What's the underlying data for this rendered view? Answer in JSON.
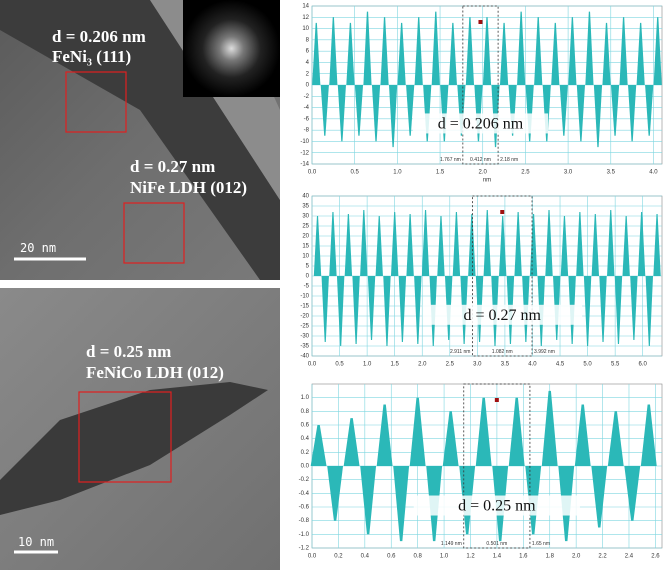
{
  "images": [
    {
      "labels": [
        "d = 0.206 nm",
        "FeNi₃ (111)",
        "d = 0.27 nm",
        "NiFe LDH (012)"
      ],
      "scale_bar": "20 nm"
    },
    {
      "labels": [
        "d = 0.25 nm",
        "FeNiCo LDH (012)"
      ],
      "scale_bar": "10 nm"
    }
  ],
  "chart_data": [
    {
      "type": "line",
      "color": "#2bb8b8",
      "grid": true,
      "xlabel": "nm",
      "annotation": "d = 0.206 nm",
      "measure": [
        {
          "value": 1.767,
          "label": "1.767 nm"
        },
        {
          "value": 0.412,
          "label": "0.412 nm"
        },
        {
          "value": 2.18,
          "label": "2.18 nm"
        }
      ],
      "xlim": [
        0,
        4.1
      ],
      "ylim": [
        -14,
        14
      ],
      "xticks": [
        {
          "value": 0,
          "label": "0.0"
        },
        0.5,
        {
          "value": 1,
          "label": "1.0"
        },
        1.5,
        {
          "value": 2,
          "label": "2.0"
        },
        2.5,
        {
          "value": 3,
          "label": "3.0"
        },
        3.5,
        {
          "value": 4,
          "label": "4.0"
        }
      ],
      "yticks": [
        -14,
        -12,
        -10,
        -8,
        -6,
        -4,
        -2,
        0,
        2,
        4,
        6,
        8,
        10,
        12,
        14
      ],
      "x": [
        0.05,
        0.15,
        0.25,
        0.35,
        0.45,
        0.55,
        0.65,
        0.75,
        0.85,
        0.95,
        1.05,
        1.15,
        1.25,
        1.35,
        1.45,
        1.55,
        1.65,
        1.75,
        1.85,
        1.95,
        2.05,
        2.15,
        2.25,
        2.35,
        2.45,
        2.55,
        2.65,
        2.75,
        2.85,
        2.95,
        3.05,
        3.15,
        3.25,
        3.35,
        3.45,
        3.55,
        3.65,
        3.75,
        3.85,
        3.95,
        4.05
      ],
      "values": [
        11,
        -9,
        12,
        -10,
        11,
        -9,
        13,
        -10,
        12,
        -11,
        11,
        -9,
        12,
        -10,
        13,
        -10,
        11,
        -9,
        12,
        -10,
        12,
        -11,
        11,
        -9,
        13,
        -10,
        12,
        -10,
        11,
        -9,
        12,
        -10,
        13,
        -11,
        11,
        -9,
        12,
        -10,
        11,
        -9,
        12
      ]
    },
    {
      "type": "line",
      "color": "#2bb8b8",
      "grid": true,
      "annotation": "d = 0.27 nm",
      "measure": [
        {
          "value": 2.911,
          "label": "2.911 nm"
        },
        {
          "value": 1.082,
          "label": "1.082 nm"
        },
        {
          "value": 3.992,
          "label": "3.992 nm"
        }
      ],
      "xlim": [
        0,
        6.35
      ],
      "ylim": [
        -40,
        40
      ],
      "xticks": [
        {
          "value": 0,
          "label": "0.0"
        },
        0.5,
        {
          "value": 1,
          "label": "1.0"
        },
        1.5,
        {
          "value": 2,
          "label": "2.0"
        },
        2.5,
        {
          "value": 3,
          "label": "3.0"
        },
        3.5,
        {
          "value": 4,
          "label": "4.0"
        },
        4.5,
        {
          "value": 5,
          "label": "5.0"
        },
        5.5,
        {
          "value": 6,
          "label": "6.0"
        }
      ],
      "yticks": [
        -40,
        -35,
        -30,
        -25,
        -20,
        -15,
        -10,
        -5,
        0,
        5,
        10,
        15,
        20,
        25,
        30,
        35,
        40
      ],
      "x": [
        0.1,
        0.24,
        0.38,
        0.52,
        0.66,
        0.8,
        0.94,
        1.08,
        1.22,
        1.36,
        1.5,
        1.64,
        1.78,
        1.92,
        2.06,
        2.2,
        2.34,
        2.48,
        2.62,
        2.76,
        2.9,
        3.04,
        3.18,
        3.32,
        3.46,
        3.6,
        3.74,
        3.88,
        4.02,
        4.16,
        4.3,
        4.44,
        4.58,
        4.72,
        4.86,
        5.0,
        5.14,
        5.28,
        5.42,
        5.56,
        5.7,
        5.84,
        5.98,
        6.12,
        6.26
      ],
      "values": [
        30,
        -33,
        32,
        -35,
        31,
        -34,
        33,
        -32,
        30,
        -35,
        32,
        -33,
        31,
        -34,
        33,
        -35,
        30,
        -32,
        32,
        -34,
        31,
        -33,
        33,
        -35,
        30,
        -34,
        32,
        -33,
        31,
        -35,
        33,
        -32,
        30,
        -34,
        32,
        -35,
        31,
        -33,
        33,
        -34,
        30,
        -32,
        32,
        -35,
        31
      ]
    },
    {
      "type": "line",
      "color": "#2bb8b8",
      "grid": true,
      "annotation": "d = 0.25 nm",
      "measure": [
        {
          "value": 1.149,
          "label": "1.149 nm"
        },
        {
          "value": 0.501,
          "label": "0.501 nm"
        },
        {
          "value": 1.65,
          "label": "1.65 nm"
        }
      ],
      "xlim": [
        0,
        2.65
      ],
      "ylim": [
        -1.2,
        1.2
      ],
      "xticks": [
        {
          "value": 0,
          "label": "0.0"
        },
        0.2,
        0.4,
        0.6,
        0.8,
        {
          "value": 1,
          "label": "1.0"
        },
        1.2,
        1.4,
        1.6,
        1.8,
        {
          "value": 2,
          "label": "2.0"
        },
        2.2,
        2.4,
        2.6
      ],
      "yticks": [
        -1.2,
        {
          "value": -1,
          "label": "-1.0"
        },
        -0.8,
        -0.6,
        -0.4,
        -0.2,
        {
          "value": 0,
          "label": "0.0"
        },
        0.2,
        0.4,
        0.6,
        0.8,
        {
          "value": 1,
          "label": "1.0"
        }
      ],
      "x": [
        0.05,
        0.175,
        0.3,
        0.425,
        0.55,
        0.675,
        0.8,
        0.925,
        1.05,
        1.175,
        1.3,
        1.425,
        1.55,
        1.675,
        1.8,
        1.925,
        2.05,
        2.175,
        2.3,
        2.425,
        2.55
      ],
      "values": [
        0.6,
        -0.8,
        0.7,
        -1.0,
        0.9,
        -1.1,
        1.0,
        -1.1,
        0.8,
        -1.0,
        1.0,
        -1.1,
        1.0,
        -1.0,
        1.1,
        -1.1,
        0.9,
        -0.9,
        0.8,
        -0.8,
        0.9
      ]
    }
  ]
}
